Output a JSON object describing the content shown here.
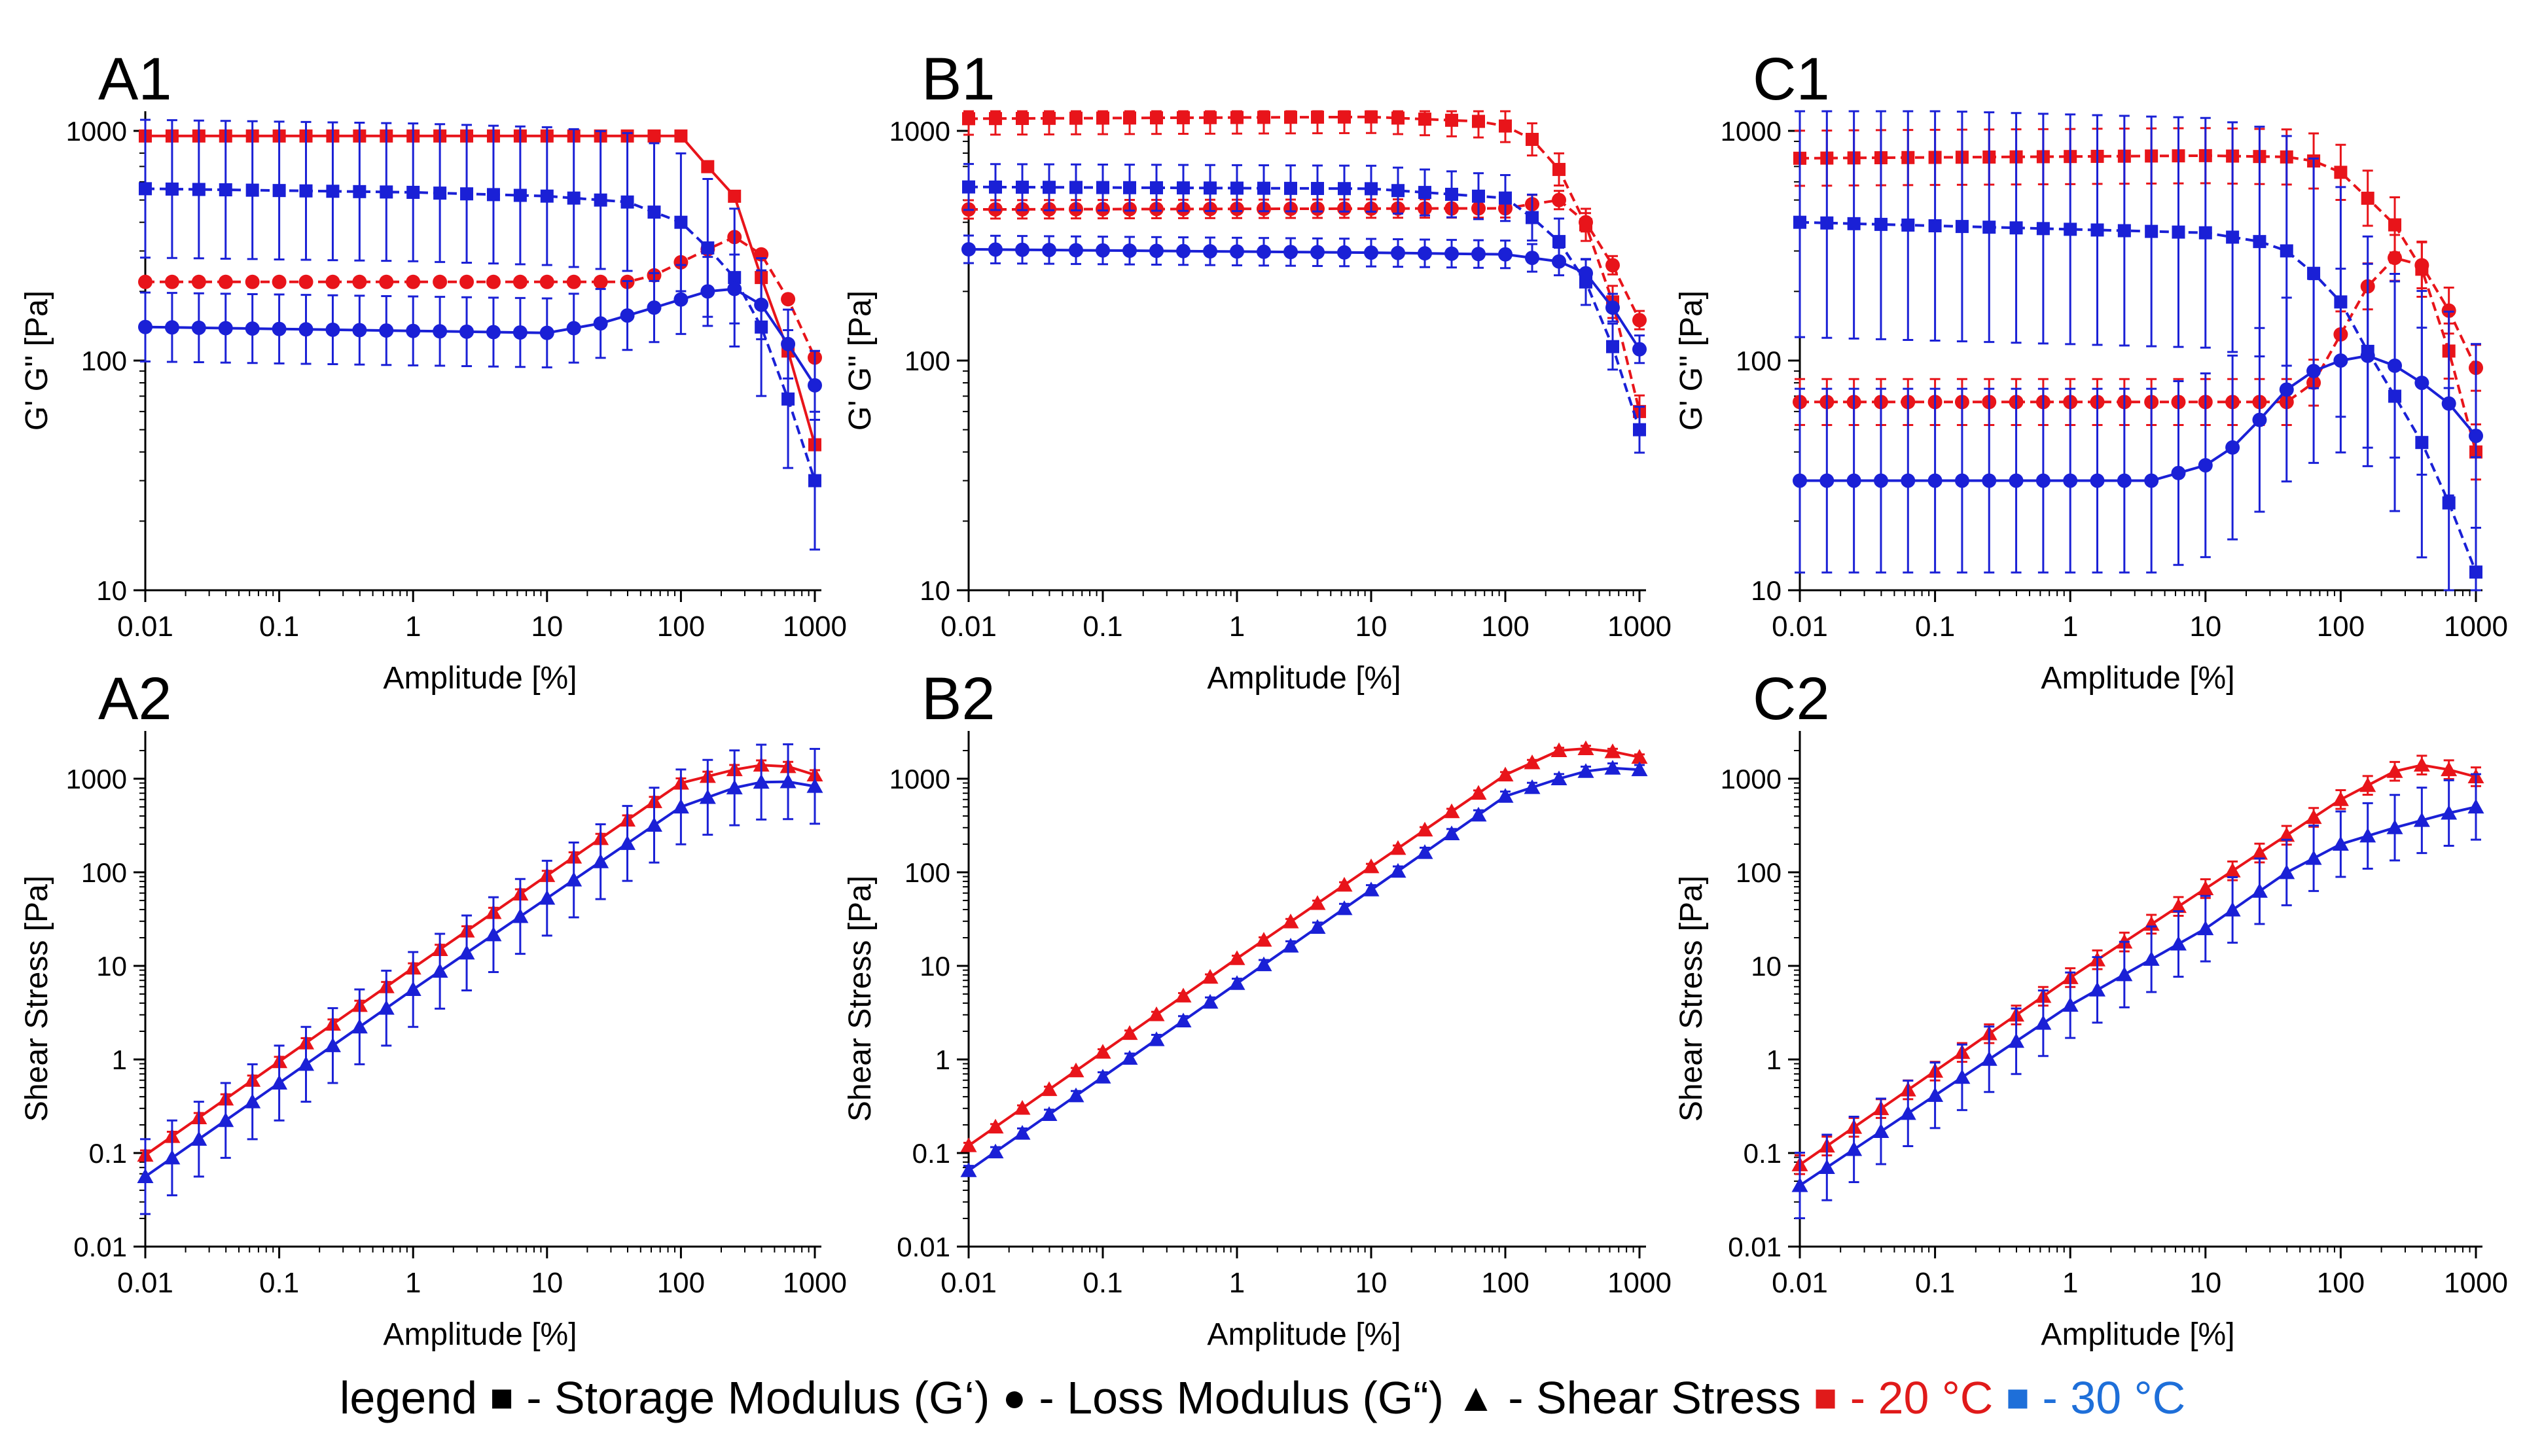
{
  "chart_data": [
    {
      "panel": "A1",
      "type": "line",
      "xscale": "log",
      "yscale": "log",
      "xlabel": "Amplitude [%]",
      "ylabel": "G' G'' [Pa]",
      "xlim": [
        0.01,
        1000
      ],
      "ylim": [
        10,
        1000
      ],
      "xticks": [
        "0.01",
        "0.1",
        "1",
        "10",
        "100",
        "1000"
      ],
      "yticks": [
        "10",
        "100",
        "1000"
      ],
      "series": [
        {
          "name": "Storage Modulus (G') 20 °C",
          "color": "red",
          "marker": "square",
          "style": "solid",
          "points": [
            [
              0.01,
              950
            ],
            [
              100,
              950
            ],
            [
              158,
              700
            ],
            [
              251,
              520
            ],
            [
              398,
              230
            ],
            [
              631,
              110
            ],
            [
              1000,
              43
            ]
          ]
        },
        {
          "name": "Loss Modulus (G'') 20 °C",
          "color": "red",
          "marker": "circle",
          "style": "dashed",
          "points": [
            [
              0.01,
              220
            ],
            [
              50,
              220
            ],
            [
              158,
              305
            ],
            [
              251,
              345
            ],
            [
              398,
              290
            ],
            [
              631,
              185
            ],
            [
              1000,
              103
            ]
          ]
        },
        {
          "name": "Storage Modulus (G') 30 °C",
          "color": "blue",
          "marker": "square",
          "style": "dashed",
          "points": [
            [
              0.01,
              560
            ],
            [
              1,
              540
            ],
            [
              10,
              520
            ],
            [
              40,
              490
            ],
            [
              100,
              400
            ],
            [
              158,
              310
            ],
            [
              251,
              230
            ],
            [
              398,
              140
            ],
            [
              631,
              68
            ],
            [
              1000,
              30
            ]
          ],
          "error": 0.3
        },
        {
          "name": "Loss Modulus (G'') 30 °C",
          "color": "blue",
          "marker": "circle",
          "style": "solid",
          "points": [
            [
              0.01,
              140
            ],
            [
              10,
              132
            ],
            [
              25,
              145
            ],
            [
              63,
              170
            ],
            [
              158,
              200
            ],
            [
              251,
              205
            ],
            [
              398,
              175
            ],
            [
              631,
              118
            ],
            [
              1000,
              78
            ]
          ],
          "error": 0.15
        }
      ]
    },
    {
      "panel": "B1",
      "type": "line",
      "xscale": "log",
      "yscale": "log",
      "xlabel": "Amplitude [%]",
      "ylabel": "G' G'' [Pa]",
      "xlim": [
        0.01,
        1000
      ],
      "ylim": [
        10,
        1000
      ],
      "xticks": [
        "0.01",
        "0.1",
        "1",
        "10",
        "100",
        "1000"
      ],
      "yticks": [
        "10",
        "100",
        "1000"
      ],
      "series": [
        {
          "name": "Storage Modulus (G') 20 °C",
          "color": "red",
          "marker": "square",
          "style": "dashed",
          "points": [
            [
              0.01,
              1130
            ],
            [
              10,
              1150
            ],
            [
              63,
              1100
            ],
            [
              100,
              1050
            ],
            [
              158,
              920
            ],
            [
              251,
              680
            ],
            [
              398,
              390
            ],
            [
              631,
              180
            ],
            [
              1000,
              60
            ]
          ],
          "error": 0.07
        },
        {
          "name": "Loss Modulus (G'') 20 °C",
          "color": "red",
          "marker": "circle",
          "style": "dashed",
          "points": [
            [
              0.01,
              455
            ],
            [
              100,
              460
            ],
            [
              251,
              500
            ],
            [
              398,
              400
            ],
            [
              631,
              260
            ],
            [
              1000,
              150
            ]
          ],
          "error": 0.04
        },
        {
          "name": "Storage Modulus (G') 30 °C",
          "color": "blue",
          "marker": "square",
          "style": "dashed",
          "points": [
            [
              0.01,
              570
            ],
            [
              10,
              560
            ],
            [
              100,
              510
            ],
            [
              158,
              420
            ],
            [
              251,
              330
            ],
            [
              398,
              220
            ],
            [
              631,
              115
            ],
            [
              1000,
              50
            ]
          ],
          "error": 0.1
        },
        {
          "name": "Loss Modulus (G'') 30 °C",
          "color": "blue",
          "marker": "circle",
          "style": "solid",
          "points": [
            [
              0.01,
              305
            ],
            [
              10,
              295
            ],
            [
              100,
              290
            ],
            [
              158,
              280
            ],
            [
              251,
              270
            ],
            [
              398,
              240
            ],
            [
              631,
              170
            ],
            [
              1000,
              112
            ]
          ],
          "error": 0.06
        }
      ]
    },
    {
      "panel": "C1",
      "type": "line",
      "xscale": "log",
      "yscale": "log",
      "xlabel": "Amplitude [%]",
      "ylabel": "G' G'' [Pa]",
      "xlim": [
        0.01,
        1000
      ],
      "ylim": [
        10,
        1000
      ],
      "xticks": [
        "0.01",
        "0.1",
        "1",
        "10",
        "100",
        "1000"
      ],
      "yticks": [
        "10",
        "100",
        "1000"
      ],
      "series": [
        {
          "name": "Storage Modulus (G') 20 °C",
          "color": "red",
          "marker": "square",
          "style": "dashed",
          "points": [
            [
              0.01,
              760
            ],
            [
              10,
              780
            ],
            [
              40,
              770
            ],
            [
              63,
              740
            ],
            [
              100,
              660
            ],
            [
              158,
              510
            ],
            [
              251,
              390
            ],
            [
              398,
              250
            ],
            [
              631,
              110
            ],
            [
              1000,
              40
            ]
          ],
          "error": 0.12
        },
        {
          "name": "Loss Modulus (G'') 20 °C",
          "color": "red",
          "marker": "circle",
          "style": "dashed",
          "points": [
            [
              0.01,
              66
            ],
            [
              40,
              66
            ],
            [
              63,
              80
            ],
            [
              100,
              130
            ],
            [
              158,
              210
            ],
            [
              251,
              280
            ],
            [
              398,
              260
            ],
            [
              631,
              165
            ],
            [
              1000,
              93
            ]
          ],
          "error": 0.1
        },
        {
          "name": "Storage Modulus (G') 30 °C",
          "color": "blue",
          "marker": "square",
          "style": "dashed",
          "points": [
            [
              0.01,
              400
            ],
            [
              10,
              360
            ],
            [
              25,
              330
            ],
            [
              40,
              300
            ],
            [
              63,
              240
            ],
            [
              100,
              180
            ],
            [
              158,
              110
            ],
            [
              251,
              70
            ],
            [
              398,
              44
            ],
            [
              631,
              24
            ],
            [
              1000,
              12
            ]
          ],
          "error": 0.5
        },
        {
          "name": "Loss Modulus (G'') 30 °C",
          "color": "blue",
          "marker": "circle",
          "style": "solid",
          "points": [
            [
              0.01,
              30
            ],
            [
              4,
              30
            ],
            [
              10,
              35
            ],
            [
              16,
              42
            ],
            [
              25,
              55
            ],
            [
              40,
              75
            ],
            [
              63,
              90
            ],
            [
              100,
              100
            ],
            [
              158,
              105
            ],
            [
              251,
              95
            ],
            [
              398,
              80
            ],
            [
              631,
              65
            ],
            [
              1000,
              47
            ]
          ],
          "error": 0.4
        }
      ]
    },
    {
      "panel": "A2",
      "type": "line",
      "xscale": "log",
      "yscale": "log",
      "xlabel": "Amplitude [%]",
      "ylabel": "Shear Stress [Pa]",
      "xlim": [
        0.01,
        1000
      ],
      "ylim": [
        0.01,
        2000
      ],
      "xticks": [
        "0.01",
        "0.1",
        "1",
        "10",
        "100",
        "1000"
      ],
      "yticks": [
        "0.01",
        "0.1",
        "1",
        "10",
        "100",
        "1000"
      ],
      "series": [
        {
          "name": "Shear Stress 20 °C",
          "color": "red",
          "marker": "triangle",
          "style": "solid",
          "points": [
            [
              0.01,
              0.095
            ],
            [
              1,
              9.5
            ],
            [
              100,
              900
            ],
            [
              251,
              1250
            ],
            [
              398,
              1400
            ],
            [
              631,
              1350
            ],
            [
              1000,
              1100
            ]
          ],
          "error": 0.05
        },
        {
          "name": "Shear Stress 30 °C",
          "color": "blue",
          "marker": "triangle",
          "style": "solid",
          "points": [
            [
              0.01,
              0.056
            ],
            [
              1,
              5.6
            ],
            [
              100,
              500
            ],
            [
              251,
              800
            ],
            [
              398,
              920
            ],
            [
              631,
              930
            ],
            [
              1000,
              830
            ]
          ],
          "error": 0.4
        }
      ]
    },
    {
      "panel": "B2",
      "type": "line",
      "xscale": "log",
      "yscale": "log",
      "xlabel": "Amplitude [%]",
      "ylabel": "Shear Stress [Pa]",
      "xlim": [
        0.01,
        1000
      ],
      "ylim": [
        0.01,
        2000
      ],
      "xticks": [
        "0.01",
        "0.1",
        "1",
        "10",
        "100",
        "1000"
      ],
      "yticks": [
        "0.01",
        "0.1",
        "1",
        "10",
        "100",
        "1000"
      ],
      "series": [
        {
          "name": "Shear Stress 20 °C",
          "color": "red",
          "marker": "triangle",
          "style": "solid",
          "points": [
            [
              0.01,
              0.12
            ],
            [
              1,
              12
            ],
            [
              100,
              1100
            ],
            [
              251,
              2000
            ],
            [
              398,
              2100
            ],
            [
              631,
              1950
            ],
            [
              1000,
              1700
            ]
          ],
          "error": 0.03
        },
        {
          "name": "Shear Stress 30 °C",
          "color": "blue",
          "marker": "triangle",
          "style": "solid",
          "points": [
            [
              0.01,
              0.065
            ],
            [
              1,
              6.5
            ],
            [
              100,
              650
            ],
            [
              251,
              1000
            ],
            [
              398,
              1200
            ],
            [
              631,
              1300
            ],
            [
              1000,
              1250
            ]
          ],
          "error": 0.05
        }
      ]
    },
    {
      "panel": "C2",
      "type": "line",
      "xscale": "log",
      "yscale": "log",
      "xlabel": "Amplitude [%]",
      "ylabel": "Shear Stress [Pa]",
      "xlim": [
        0.01,
        1000
      ],
      "ylim": [
        0.01,
        2000
      ],
      "xticks": [
        "0.01",
        "0.1",
        "1",
        "10",
        "100",
        "1000"
      ],
      "yticks": [
        "0.01",
        "0.1",
        "1",
        "10",
        "100",
        "1000"
      ],
      "series": [
        {
          "name": "Shear Stress 20 °C",
          "color": "red",
          "marker": "triangle",
          "style": "solid",
          "points": [
            [
              0.01,
              0.075
            ],
            [
              1,
              7.5
            ],
            [
              40,
              250
            ],
            [
              100,
              600
            ],
            [
              251,
              1200
            ],
            [
              398,
              1400
            ],
            [
              631,
              1250
            ],
            [
              1000,
              1050
            ]
          ],
          "error": 0.1
        },
        {
          "name": "Shear Stress 30 °C",
          "color": "blue",
          "marker": "triangle",
          "style": "solid",
          "points": [
            [
              0.01,
              0.045
            ],
            [
              1,
              3.8
            ],
            [
              10,
              25
            ],
            [
              40,
              100
            ],
            [
              100,
              200
            ],
            [
              251,
              300
            ],
            [
              631,
              430
            ],
            [
              1000,
              500
            ]
          ],
          "error": 0.35
        }
      ]
    }
  ],
  "legend": {
    "prefix": "legend",
    "square_symbol": "■",
    "storage_label": "- Storage Modulus (G‘)",
    "circle_symbol": "●",
    "loss_label": "- Loss Modulus (G“)",
    "triangle_symbol": "▲",
    "shear_label": "- Shear Stress",
    "red_symbol": "■",
    "red_label": "- 20 °C",
    "blue_symbol": "■",
    "blue_label": "- 30 °C"
  },
  "colors": {
    "red": "#e8141a",
    "blue": "#1a20d6",
    "legend_blue": "#1e6fd9"
  }
}
